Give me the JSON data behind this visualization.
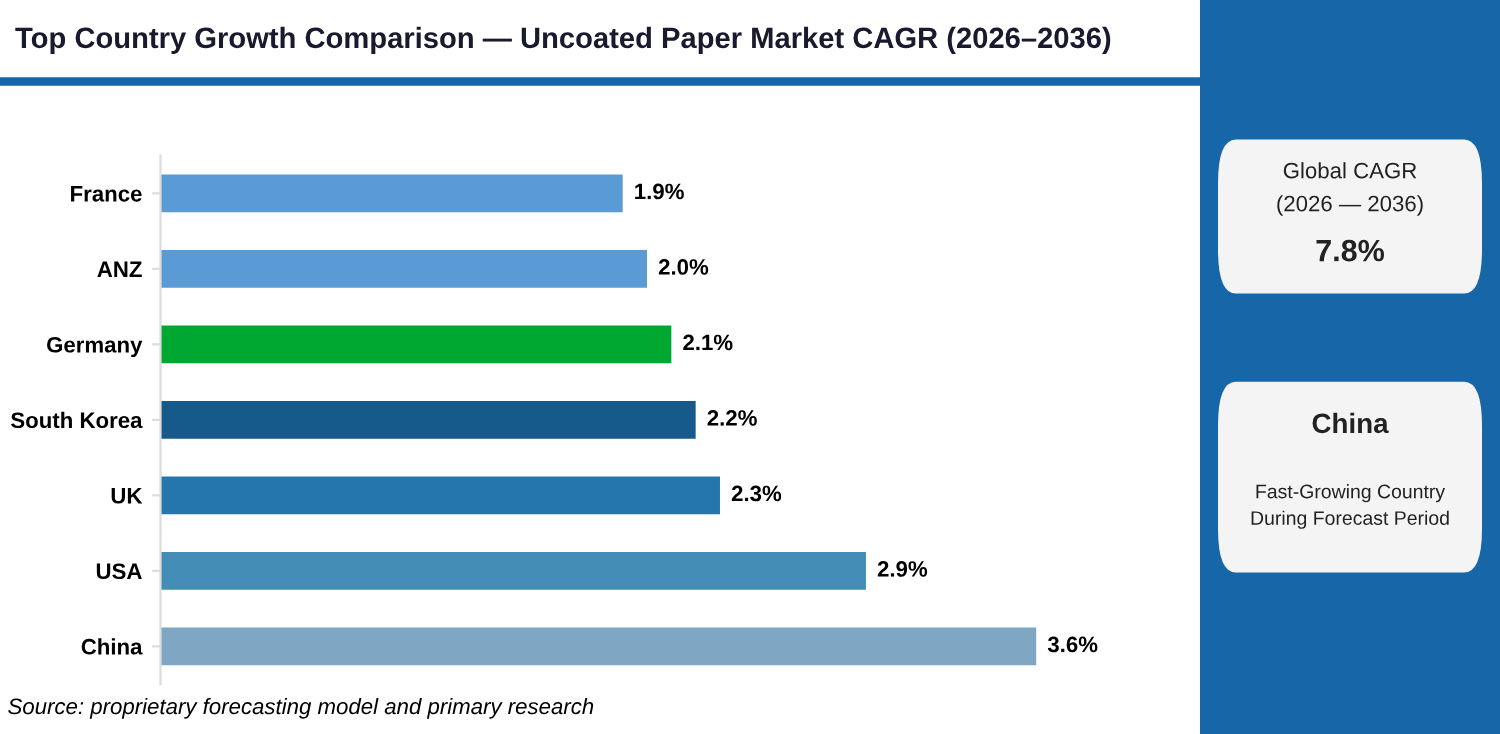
{
  "chart_data": [
    {
      "type": "bar",
      "orientation": "horizontal",
      "title": "Top Country Growth Comparison — Uncoated Paper Market CAGR (2026–2036)",
      "categories": [
        "France",
        "ANZ",
        "Germany",
        "South Korea",
        "UK",
        "USA",
        "China"
      ],
      "values": [
        1.9,
        2.0,
        2.1,
        2.2,
        2.3,
        2.9,
        3.6
      ],
      "colors": [
        "#5b9bd5",
        "#5b9bd5",
        "#00a832",
        "#155a8a",
        "#2576ab",
        "#438cb5",
        "#7fa6c2"
      ],
      "value_labels": [
        "1.9%",
        "2.0%",
        "2.1%",
        "2.2%",
        "2.3%",
        "2.9%",
        "3.6%"
      ],
      "tick_labels": "y",
      "grid": false,
      "legend": false,
      "annotations": [
        "Source: proprietary forecasting model and primary research"
      ]
    },
    {
      "type": "other",
      "annotations": [
        "Global CAGR",
        "(2026 — 2036)",
        "7.8%",
        "China",
        "Fast-Growing Country\nDuring Forecast Period"
      ]
    }
  ]
}
